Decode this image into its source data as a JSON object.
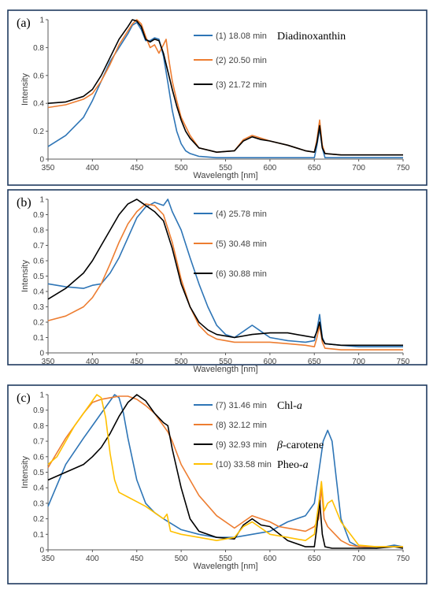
{
  "figure": {
    "background": "#ffffff",
    "frame_color": "#1f3a5f"
  },
  "chart_data": [
    {
      "type": "line",
      "panel_label": "(a)",
      "xlabel": "Wavelength [nm]",
      "ylabel": "Intensity",
      "xlim": [
        350,
        750
      ],
      "ylim": [
        0,
        1
      ],
      "xticks": [
        350,
        400,
        450,
        500,
        550,
        600,
        650,
        700,
        750
      ],
      "yticks": [
        0,
        0.2,
        0.4,
        0.6,
        0.8,
        1
      ],
      "ytick_labels": [
        "0",
        "0.2",
        "0.4",
        "0.6",
        "0.8",
        "1"
      ],
      "legend_position": "top-right",
      "series": [
        {
          "name": "(1) 18.08 min",
          "color": "#2e75b6",
          "compound": "Diadinoxanthin",
          "x": [
            350,
            370,
            390,
            400,
            410,
            420,
            430,
            440,
            445,
            450,
            455,
            460,
            465,
            470,
            475,
            480,
            485,
            490,
            495,
            500,
            505,
            510,
            520,
            540,
            560,
            580,
            600,
            620,
            640,
            650,
            653,
            656,
            659,
            662,
            680,
            700,
            720,
            750
          ],
          "y": [
            0.09,
            0.17,
            0.3,
            0.42,
            0.56,
            0.7,
            0.8,
            0.9,
            0.96,
            0.98,
            0.93,
            0.85,
            0.85,
            0.87,
            0.86,
            0.74,
            0.55,
            0.35,
            0.2,
            0.11,
            0.06,
            0.04,
            0.02,
            0.01,
            0.01,
            0.01,
            0.01,
            0.01,
            0.01,
            0.01,
            0.1,
            0.22,
            0.08,
            0.01,
            0.01,
            0.01,
            0.01,
            0.01
          ]
        },
        {
          "name": "(2) 20.50 min",
          "color": "#ed7d31",
          "x": [
            350,
            370,
            390,
            400,
            410,
            420,
            430,
            440,
            445,
            450,
            455,
            460,
            465,
            470,
            475,
            480,
            483,
            486,
            490,
            495,
            500,
            510,
            520,
            540,
            560,
            570,
            580,
            590,
            600,
            620,
            640,
            650,
            653,
            656,
            659,
            662,
            680,
            700,
            720,
            750
          ],
          "y": [
            0.37,
            0.39,
            0.43,
            0.47,
            0.56,
            0.68,
            0.82,
            0.92,
            0.97,
            1.0,
            0.97,
            0.88,
            0.8,
            0.82,
            0.76,
            0.82,
            0.86,
            0.72,
            0.56,
            0.42,
            0.3,
            0.17,
            0.08,
            0.05,
            0.06,
            0.14,
            0.17,
            0.15,
            0.13,
            0.1,
            0.06,
            0.05,
            0.14,
            0.28,
            0.1,
            0.04,
            0.03,
            0.03,
            0.03,
            0.03
          ]
        },
        {
          "name": "(3) 21.72 min",
          "color": "#000000",
          "x": [
            350,
            370,
            390,
            400,
            410,
            420,
            430,
            440,
            445,
            450,
            455,
            460,
            465,
            470,
            475,
            480,
            485,
            490,
            495,
            500,
            505,
            510,
            520,
            540,
            560,
            570,
            580,
            590,
            600,
            620,
            640,
            650,
            653,
            656,
            659,
            662,
            680,
            700,
            720,
            750
          ],
          "y": [
            0.4,
            0.41,
            0.45,
            0.5,
            0.6,
            0.73,
            0.86,
            0.95,
            1.0,
            0.99,
            0.95,
            0.86,
            0.84,
            0.86,
            0.85,
            0.76,
            0.63,
            0.5,
            0.38,
            0.28,
            0.2,
            0.15,
            0.08,
            0.05,
            0.06,
            0.13,
            0.16,
            0.14,
            0.13,
            0.1,
            0.06,
            0.05,
            0.12,
            0.24,
            0.08,
            0.04,
            0.03,
            0.03,
            0.03,
            0.03
          ]
        }
      ]
    },
    {
      "type": "line",
      "panel_label": "(b)",
      "xlabel": "Wavelength [nm]",
      "ylabel": "Intensity",
      "xlim": [
        350,
        750
      ],
      "ylim": [
        0,
        1
      ],
      "xticks": [
        350,
        400,
        450,
        500,
        550,
        600,
        650,
        700,
        750
      ],
      "yticks": [
        0,
        0.1,
        0.2,
        0.3,
        0.4,
        0.5,
        0.6,
        0.7,
        0.8,
        0.9,
        1
      ],
      "ytick_labels": [
        "0",
        "0.1",
        "0.2",
        "0.3",
        "0.4",
        "0.5",
        "0.6",
        "0.7",
        "0.8",
        "0.9",
        "1"
      ],
      "legend_position": "top-right",
      "series": [
        {
          "name": "(4) 25.78 min",
          "color": "#2e75b6",
          "x": [
            350,
            370,
            390,
            400,
            410,
            420,
            430,
            440,
            450,
            460,
            470,
            480,
            485,
            490,
            500,
            510,
            520,
            530,
            540,
            550,
            560,
            570,
            580,
            590,
            600,
            620,
            640,
            650,
            653,
            656,
            659,
            662,
            680,
            700,
            720,
            750
          ],
          "y": [
            0.45,
            0.43,
            0.42,
            0.44,
            0.45,
            0.52,
            0.62,
            0.75,
            0.88,
            0.95,
            0.98,
            0.96,
            1.0,
            0.92,
            0.8,
            0.62,
            0.45,
            0.3,
            0.18,
            0.12,
            0.1,
            0.14,
            0.18,
            0.14,
            0.1,
            0.08,
            0.07,
            0.08,
            0.15,
            0.25,
            0.1,
            0.06,
            0.05,
            0.04,
            0.04,
            0.04
          ]
        },
        {
          "name": "(5) 30.48 min",
          "color": "#ed7d31",
          "x": [
            350,
            370,
            390,
            400,
            410,
            420,
            430,
            440,
            450,
            460,
            470,
            480,
            490,
            500,
            510,
            520,
            530,
            540,
            560,
            580,
            600,
            620,
            640,
            650,
            653,
            656,
            659,
            662,
            680,
            700,
            720,
            750
          ],
          "y": [
            0.21,
            0.24,
            0.3,
            0.36,
            0.45,
            0.58,
            0.72,
            0.84,
            0.92,
            0.97,
            0.96,
            0.9,
            0.72,
            0.48,
            0.3,
            0.18,
            0.12,
            0.09,
            0.07,
            0.07,
            0.07,
            0.06,
            0.05,
            0.04,
            0.1,
            0.18,
            0.07,
            0.03,
            0.02,
            0.02,
            0.02,
            0.02
          ]
        },
        {
          "name": "(6) 30.88 min",
          "color": "#000000",
          "x": [
            350,
            370,
            390,
            400,
            410,
            420,
            430,
            440,
            450,
            460,
            470,
            480,
            490,
            500,
            510,
            520,
            530,
            540,
            560,
            580,
            600,
            620,
            640,
            650,
            653,
            656,
            659,
            662,
            680,
            700,
            720,
            750
          ],
          "y": [
            0.35,
            0.42,
            0.52,
            0.6,
            0.7,
            0.8,
            0.9,
            0.97,
            1.0,
            0.96,
            0.92,
            0.86,
            0.68,
            0.45,
            0.3,
            0.2,
            0.15,
            0.12,
            0.1,
            0.12,
            0.13,
            0.13,
            0.11,
            0.1,
            0.14,
            0.2,
            0.09,
            0.06,
            0.05,
            0.05,
            0.05,
            0.05
          ]
        }
      ]
    },
    {
      "type": "line",
      "panel_label": "(c)",
      "xlabel": "Wavelength [nm]",
      "ylabel": "Intensity",
      "xlim": [
        350,
        750
      ],
      "ylim": [
        0,
        1
      ],
      "xticks": [
        350,
        400,
        450,
        500,
        550,
        600,
        650,
        700,
        750
      ],
      "yticks": [
        0,
        0.1,
        0.2,
        0.3,
        0.4,
        0.5,
        0.6,
        0.7,
        0.8,
        0.9,
        1
      ],
      "ytick_labels": [
        "0",
        "0.1",
        "0.2",
        "0.3",
        "0.4",
        "0.5",
        "0.6",
        "0.7",
        "0.8",
        "0.9",
        "1"
      ],
      "legend_position": "top-right",
      "series": [
        {
          "name": "(7) 31.46 min",
          "color": "#2e75b6",
          "compound": "Chl-a",
          "x": [
            350,
            370,
            390,
            400,
            410,
            420,
            425,
            430,
            435,
            440,
            450,
            460,
            470,
            480,
            500,
            520,
            540,
            560,
            580,
            600,
            620,
            640,
            650,
            655,
            660,
            665,
            670,
            675,
            680,
            690,
            700,
            720,
            740,
            750
          ],
          "y": [
            0.28,
            0.55,
            0.72,
            0.8,
            0.88,
            0.96,
            1.0,
            0.98,
            0.88,
            0.72,
            0.45,
            0.3,
            0.24,
            0.2,
            0.13,
            0.1,
            0.08,
            0.08,
            0.1,
            0.12,
            0.18,
            0.22,
            0.3,
            0.5,
            0.7,
            0.77,
            0.7,
            0.45,
            0.2,
            0.05,
            0.02,
            0.01,
            0.03,
            0.02
          ]
        },
        {
          "name": "(8) 32.12 min",
          "color": "#ed7d31",
          "x": [
            350,
            370,
            390,
            400,
            410,
            420,
            430,
            440,
            450,
            460,
            470,
            480,
            485,
            490,
            500,
            510,
            520,
            540,
            560,
            570,
            580,
            590,
            600,
            610,
            620,
            640,
            650,
            655,
            658,
            661,
            665,
            670,
            680,
            690,
            700,
            720,
            740,
            750
          ],
          "y": [
            0.53,
            0.72,
            0.88,
            0.95,
            0.97,
            0.98,
            0.99,
            0.99,
            0.97,
            0.93,
            0.88,
            0.8,
            0.76,
            0.7,
            0.55,
            0.45,
            0.35,
            0.22,
            0.14,
            0.18,
            0.22,
            0.2,
            0.18,
            0.15,
            0.14,
            0.12,
            0.15,
            0.2,
            0.4,
            0.2,
            0.15,
            0.12,
            0.06,
            0.03,
            0.02,
            0.02,
            0.02,
            0.02
          ]
        },
        {
          "name": "(9) 32.93 min",
          "color": "#000000",
          "compound": "β-carotene",
          "x": [
            350,
            370,
            390,
            400,
            410,
            420,
            430,
            440,
            450,
            460,
            470,
            480,
            485,
            490,
            500,
            510,
            520,
            540,
            560,
            570,
            580,
            590,
            600,
            620,
            640,
            650,
            653,
            656,
            659,
            662,
            670,
            690,
            720,
            740,
            750
          ],
          "y": [
            0.45,
            0.5,
            0.55,
            0.6,
            0.66,
            0.75,
            0.86,
            0.95,
            1.0,
            0.96,
            0.88,
            0.82,
            0.8,
            0.65,
            0.4,
            0.2,
            0.12,
            0.08,
            0.07,
            0.16,
            0.2,
            0.16,
            0.15,
            0.06,
            0.02,
            0.02,
            0.15,
            0.32,
            0.1,
            0.02,
            0.01,
            0.01,
            0.01,
            0.02,
            0.01
          ]
        },
        {
          "name": "(10) 33.58 min",
          "color": "#ffc000",
          "compound": "Pheo-a",
          "x": [
            350,
            360,
            370,
            380,
            390,
            400,
            405,
            410,
            415,
            420,
            425,
            430,
            440,
            460,
            480,
            484,
            488,
            500,
            520,
            540,
            560,
            570,
            580,
            590,
            600,
            620,
            640,
            650,
            655,
            658,
            661,
            665,
            670,
            680,
            700,
            720,
            750
          ],
          "y": [
            0.55,
            0.6,
            0.7,
            0.8,
            0.88,
            0.96,
            1.0,
            0.98,
            0.85,
            0.62,
            0.45,
            0.37,
            0.34,
            0.28,
            0.2,
            0.23,
            0.12,
            0.1,
            0.08,
            0.06,
            0.08,
            0.15,
            0.18,
            0.14,
            0.1,
            0.08,
            0.06,
            0.1,
            0.3,
            0.44,
            0.25,
            0.3,
            0.32,
            0.18,
            0.03,
            0.02,
            0.02
          ]
        }
      ]
    }
  ]
}
